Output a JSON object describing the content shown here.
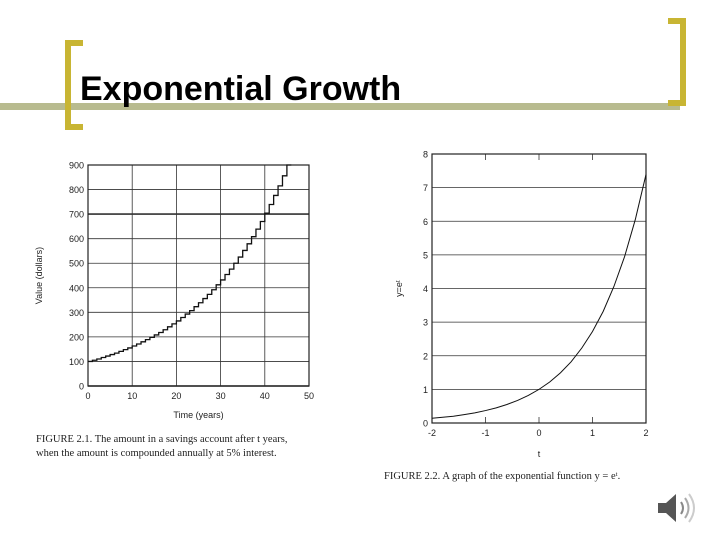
{
  "slide": {
    "title": "Exponential Growth",
    "accent_colors": {
      "bracket": "#c8b533",
      "bar": "#b8bb8f"
    },
    "speaker_icon": "speaker-icon"
  },
  "figure1": {
    "caption_line1": "FIGURE 2.1. The amount in a savings account after t years,",
    "caption_line2": "when the amount is compounded annually at 5% interest."
  },
  "figure2": {
    "caption": "FIGURE 2.2. A graph of the exponential function y = eᵗ."
  },
  "chart_data": [
    {
      "type": "line",
      "step": true,
      "xlabel": "Time (years)",
      "ylabel": "Value (dollars)",
      "xlim": [
        0,
        50
      ],
      "ylim": [
        0,
        900
      ],
      "xticks": [
        0,
        10,
        20,
        30,
        40,
        50
      ],
      "yticks": [
        0,
        100,
        200,
        300,
        400,
        500,
        600,
        700,
        800,
        900
      ],
      "grid": true,
      "series": [
        {
          "x": [
            0,
            1,
            2,
            3,
            4,
            5,
            6,
            7,
            8,
            9,
            10,
            11,
            12,
            13,
            14,
            15,
            16,
            17,
            18,
            19,
            20,
            21,
            22,
            23,
            24,
            25,
            26,
            27,
            28,
            29,
            30,
            31,
            32,
            33,
            34,
            35,
            36,
            37,
            38,
            39,
            40,
            41,
            42,
            43,
            44,
            45
          ],
          "y": [
            100,
            105,
            110,
            116,
            122,
            128,
            134,
            141,
            148,
            155,
            163,
            171,
            180,
            189,
            198,
            208,
            218,
            229,
            241,
            253,
            265,
            279,
            293,
            307,
            323,
            339,
            356,
            373,
            392,
            412,
            432,
            454,
            476,
            500,
            525,
            552,
            579,
            608,
            639,
            670,
            704,
            739,
            776,
            815,
            856,
            900
          ]
        }
      ]
    },
    {
      "type": "line",
      "xlabel": "t",
      "ylabel": "y=eᵗ",
      "xlim": [
        -2,
        2
      ],
      "ylim": [
        0,
        8
      ],
      "xticks": [
        -2,
        -1,
        0,
        1,
        2
      ],
      "yticks": [
        0,
        1,
        2,
        3,
        4,
        5,
        6,
        7,
        8
      ],
      "grid": true,
      "series": [
        {
          "x": [
            -2,
            -1.8,
            -1.6,
            -1.4,
            -1.2,
            -1,
            -0.8,
            -0.6,
            -0.4,
            -0.2,
            0,
            0.2,
            0.4,
            0.6,
            0.8,
            1,
            1.2,
            1.4,
            1.6,
            1.8,
            2
          ],
          "y": [
            0.14,
            0.17,
            0.2,
            0.25,
            0.3,
            0.37,
            0.45,
            0.55,
            0.67,
            0.82,
            1,
            1.22,
            1.49,
            1.82,
            2.23,
            2.72,
            3.32,
            4.06,
            4.95,
            6.05,
            7.39
          ]
        }
      ]
    }
  ]
}
